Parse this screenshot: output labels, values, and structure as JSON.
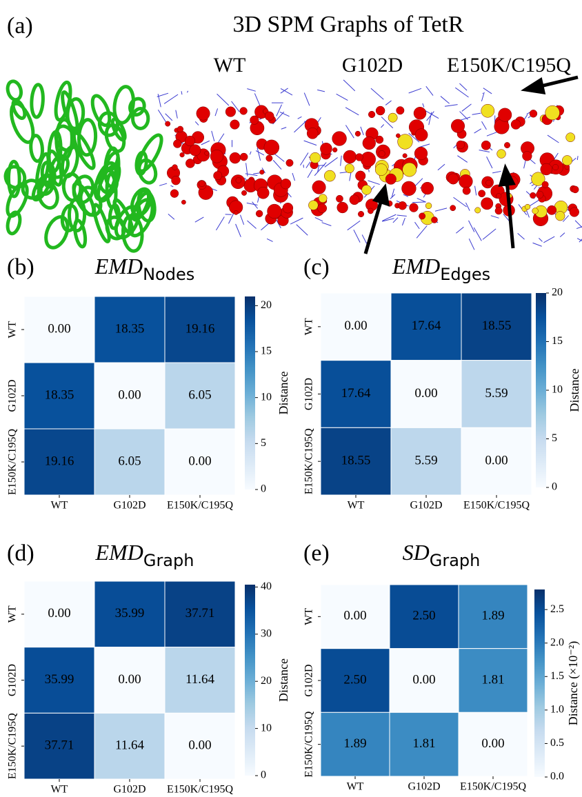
{
  "figure": {
    "panel": "(a)",
    "title": "3D SPM Graphs of TetR",
    "labels": [
      "WT",
      "G102D",
      "E150K/C195Q"
    ]
  },
  "chart_data": [
    {
      "panel": "(b)",
      "type": "heatmap",
      "title": "EMD",
      "title_sub": "Nodes",
      "x_categories": [
        "WT",
        "G102D",
        "E150K/C195Q"
      ],
      "y_categories": [
        "WT",
        "G102D",
        "E150K/C195Q"
      ],
      "values": [
        [
          0,
          18.35,
          19.16
        ],
        [
          18.35,
          0,
          6.05
        ],
        [
          19.16,
          6.05,
          0
        ]
      ],
      "value_labels": [
        [
          "0.00",
          "18.35",
          "19.16"
        ],
        [
          "18.35",
          "0.00",
          "6.05"
        ],
        [
          "19.16",
          "6.05",
          "0.00"
        ]
      ],
      "colormap": "Blues",
      "clim": [
        0,
        21
      ],
      "cticks": [
        0,
        5,
        10,
        15,
        20
      ],
      "colorbar_label": "Distance"
    },
    {
      "panel": "(c)",
      "type": "heatmap",
      "title": "EMD",
      "title_sub": "Edges",
      "x_categories": [
        "WT",
        "G102D",
        "E150K/C195Q"
      ],
      "y_categories": [
        "WT",
        "G102D",
        "E150K/C195Q"
      ],
      "values": [
        [
          0,
          17.64,
          18.55
        ],
        [
          17.64,
          0,
          5.59
        ],
        [
          18.55,
          5.59,
          0
        ]
      ],
      "value_labels": [
        [
          "0.00",
          "17.64",
          "18.55"
        ],
        [
          "17.64",
          "0.00",
          "5.59"
        ],
        [
          "18.55",
          "5.59",
          "0.00"
        ]
      ],
      "colormap": "Blues",
      "clim": [
        0,
        20
      ],
      "cticks": [
        0,
        5,
        10,
        15,
        20
      ],
      "colorbar_label": "Distance"
    },
    {
      "panel": "(d)",
      "type": "heatmap",
      "title": "EMD",
      "title_sub": "Graph",
      "x_categories": [
        "WT",
        "G102D",
        "E150K/C195Q"
      ],
      "y_categories": [
        "WT",
        "G102D",
        "E150K/C195Q"
      ],
      "values": [
        [
          0,
          35.99,
          37.71
        ],
        [
          35.99,
          0,
          11.64
        ],
        [
          37.71,
          11.64,
          0
        ]
      ],
      "value_labels": [
        [
          "0.00",
          "35.99",
          "37.71"
        ],
        [
          "35.99",
          "0.00",
          "11.64"
        ],
        [
          "37.71",
          "11.64",
          "0.00"
        ]
      ],
      "colormap": "Blues",
      "clim": [
        0,
        40.5
      ],
      "cticks": [
        0,
        10,
        20,
        30,
        40
      ],
      "colorbar_label": "Distance"
    },
    {
      "panel": "(e)",
      "type": "heatmap",
      "title": "SD",
      "title_sub": "Graph",
      "x_categories": [
        "WT",
        "G102D",
        "E150K/C195Q"
      ],
      "y_categories": [
        "WT",
        "G102D",
        "E150K/C195Q"
      ],
      "values": [
        [
          0,
          2.5,
          1.89
        ],
        [
          2.5,
          0,
          1.81
        ],
        [
          1.89,
          1.81,
          0
        ]
      ],
      "value_labels": [
        [
          "0.00",
          "2.50",
          "1.89"
        ],
        [
          "2.50",
          "0.00",
          "1.81"
        ],
        [
          "1.89",
          "1.81",
          "0.00"
        ]
      ],
      "colormap": "Blues",
      "clim": [
        0,
        2.8
      ],
      "cticks": [
        {
          "value": 0,
          "label": "0.0"
        },
        0.5,
        {
          "value": 1,
          "label": "1.0"
        },
        1.5,
        {
          "value": 2,
          "label": "2.0"
        },
        2.5
      ],
      "colorbar_label": "Distance (×10⁻²)"
    }
  ]
}
